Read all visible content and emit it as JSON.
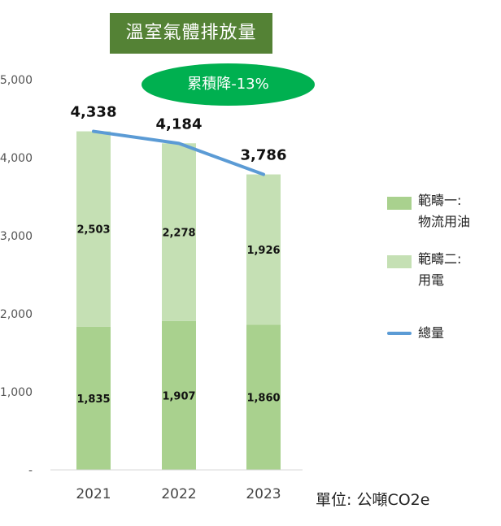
{
  "chart_data": {
    "type": "bar",
    "stacked": true,
    "title": "溫室氣體排放量",
    "annotation": "累積降-13%",
    "unit": "單位: 公噸CO2e",
    "categories": [
      "2021",
      "2022",
      "2023"
    ],
    "series": [
      {
        "name": "範疇一:\n物流用油",
        "values": [
          1835,
          1907,
          1860
        ],
        "value_labels": [
          "1,835",
          "1,907",
          "1,860"
        ],
        "color": "#a9d18e"
      },
      {
        "name": "範疇二:\n用電",
        "values": [
          2503,
          2278,
          1926
        ],
        "value_labels": [
          "2,503",
          "2,278",
          "1,926"
        ],
        "color": "#c5e0b4"
      }
    ],
    "total_line": {
      "name": "總量",
      "values": [
        4338,
        4184,
        3786
      ],
      "value_labels": [
        "4,338",
        "4,184",
        "3,786"
      ],
      "color": "#5b9bd5"
    },
    "y_ticks": [
      0,
      1000,
      2000,
      3000,
      4000,
      5000
    ],
    "y_tick_labels": [
      "-",
      "1,000",
      "2,000",
      "3,000",
      "4,000",
      "5,000"
    ],
    "ylim": [
      0,
      5000
    ],
    "grid": false,
    "legend_position": "right"
  }
}
